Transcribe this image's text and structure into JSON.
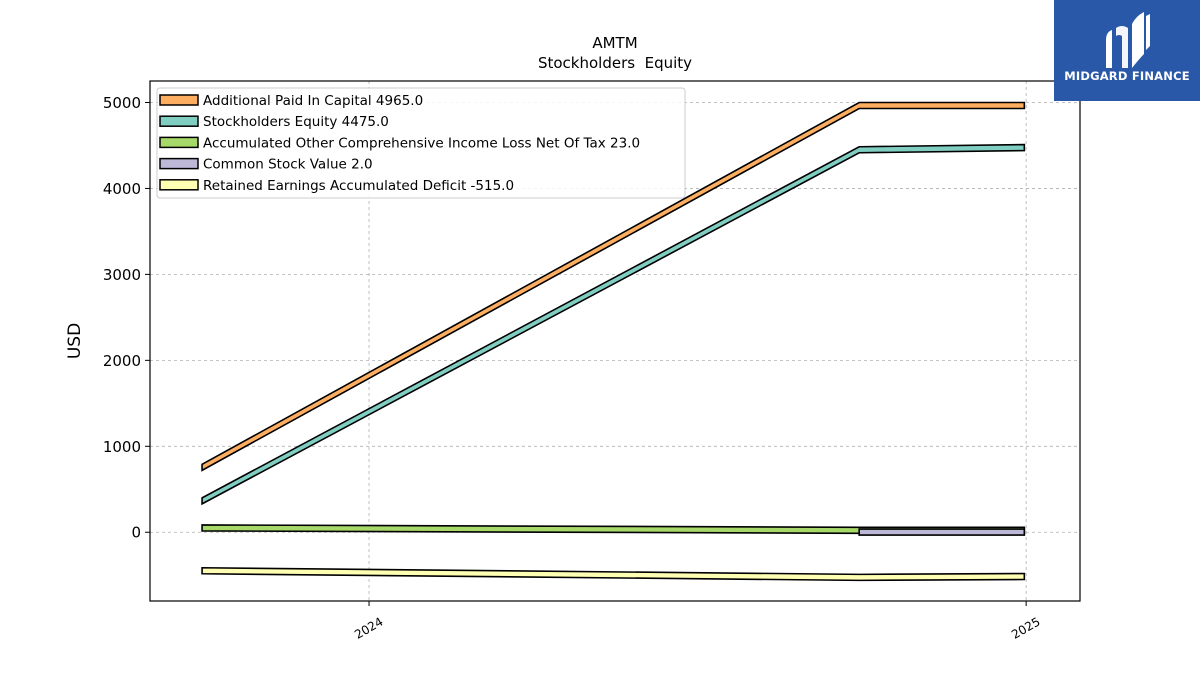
{
  "title": "AMTM",
  "subtitle": "Stockholders  Equity",
  "logo_text": "MIDGARD FINANCE",
  "chart_data": {
    "type": "area",
    "title": "AMTM",
    "subtitle": "Stockholders  Equity",
    "xlabel": "",
    "ylabel": "USD",
    "xlim": [
      "2023-09-01",
      "2025-01-31"
    ],
    "ylim": [
      -800,
      5250
    ],
    "x_ticks": [
      "2024",
      "2025"
    ],
    "y_ticks": [
      0,
      1000,
      2000,
      3000,
      4000,
      5000
    ],
    "grid": true,
    "legend_position": "top-left",
    "x": [
      "2023-09-30",
      "2024-09-30",
      "2024-12-31"
    ],
    "series": [
      {
        "name": "Additional Paid In Capital",
        "label": "Additional Paid In Capital  4965.0",
        "color": "#fdae61",
        "values": [
          755,
          4965,
          4965
        ]
      },
      {
        "name": "Stockholders Equity",
        "label": "Stockholders Equity  4475.0",
        "color": "#80cdc1",
        "values": [
          365,
          4450,
          4475
        ]
      },
      {
        "name": "Accumulated Other Comprehensive Income Loss Net Of Tax",
        "label": "Accumulated Other Comprehensive Income Loss Net Of Tax  23.0",
        "color": "#a6d96a",
        "values": [
          50,
          23,
          23
        ]
      },
      {
        "name": "Common Stock Value",
        "label": "Common Stock Value  2.0",
        "color": "#bcb8d6",
        "values": [
          null,
          2,
          2
        ]
      },
      {
        "name": "Retained Earnings Accumulated Deficit",
        "label": "Retained Earnings Accumulated Deficit  -515.0",
        "color": "#ffffb3",
        "values": [
          -448,
          -525,
          -515
        ]
      }
    ]
  }
}
